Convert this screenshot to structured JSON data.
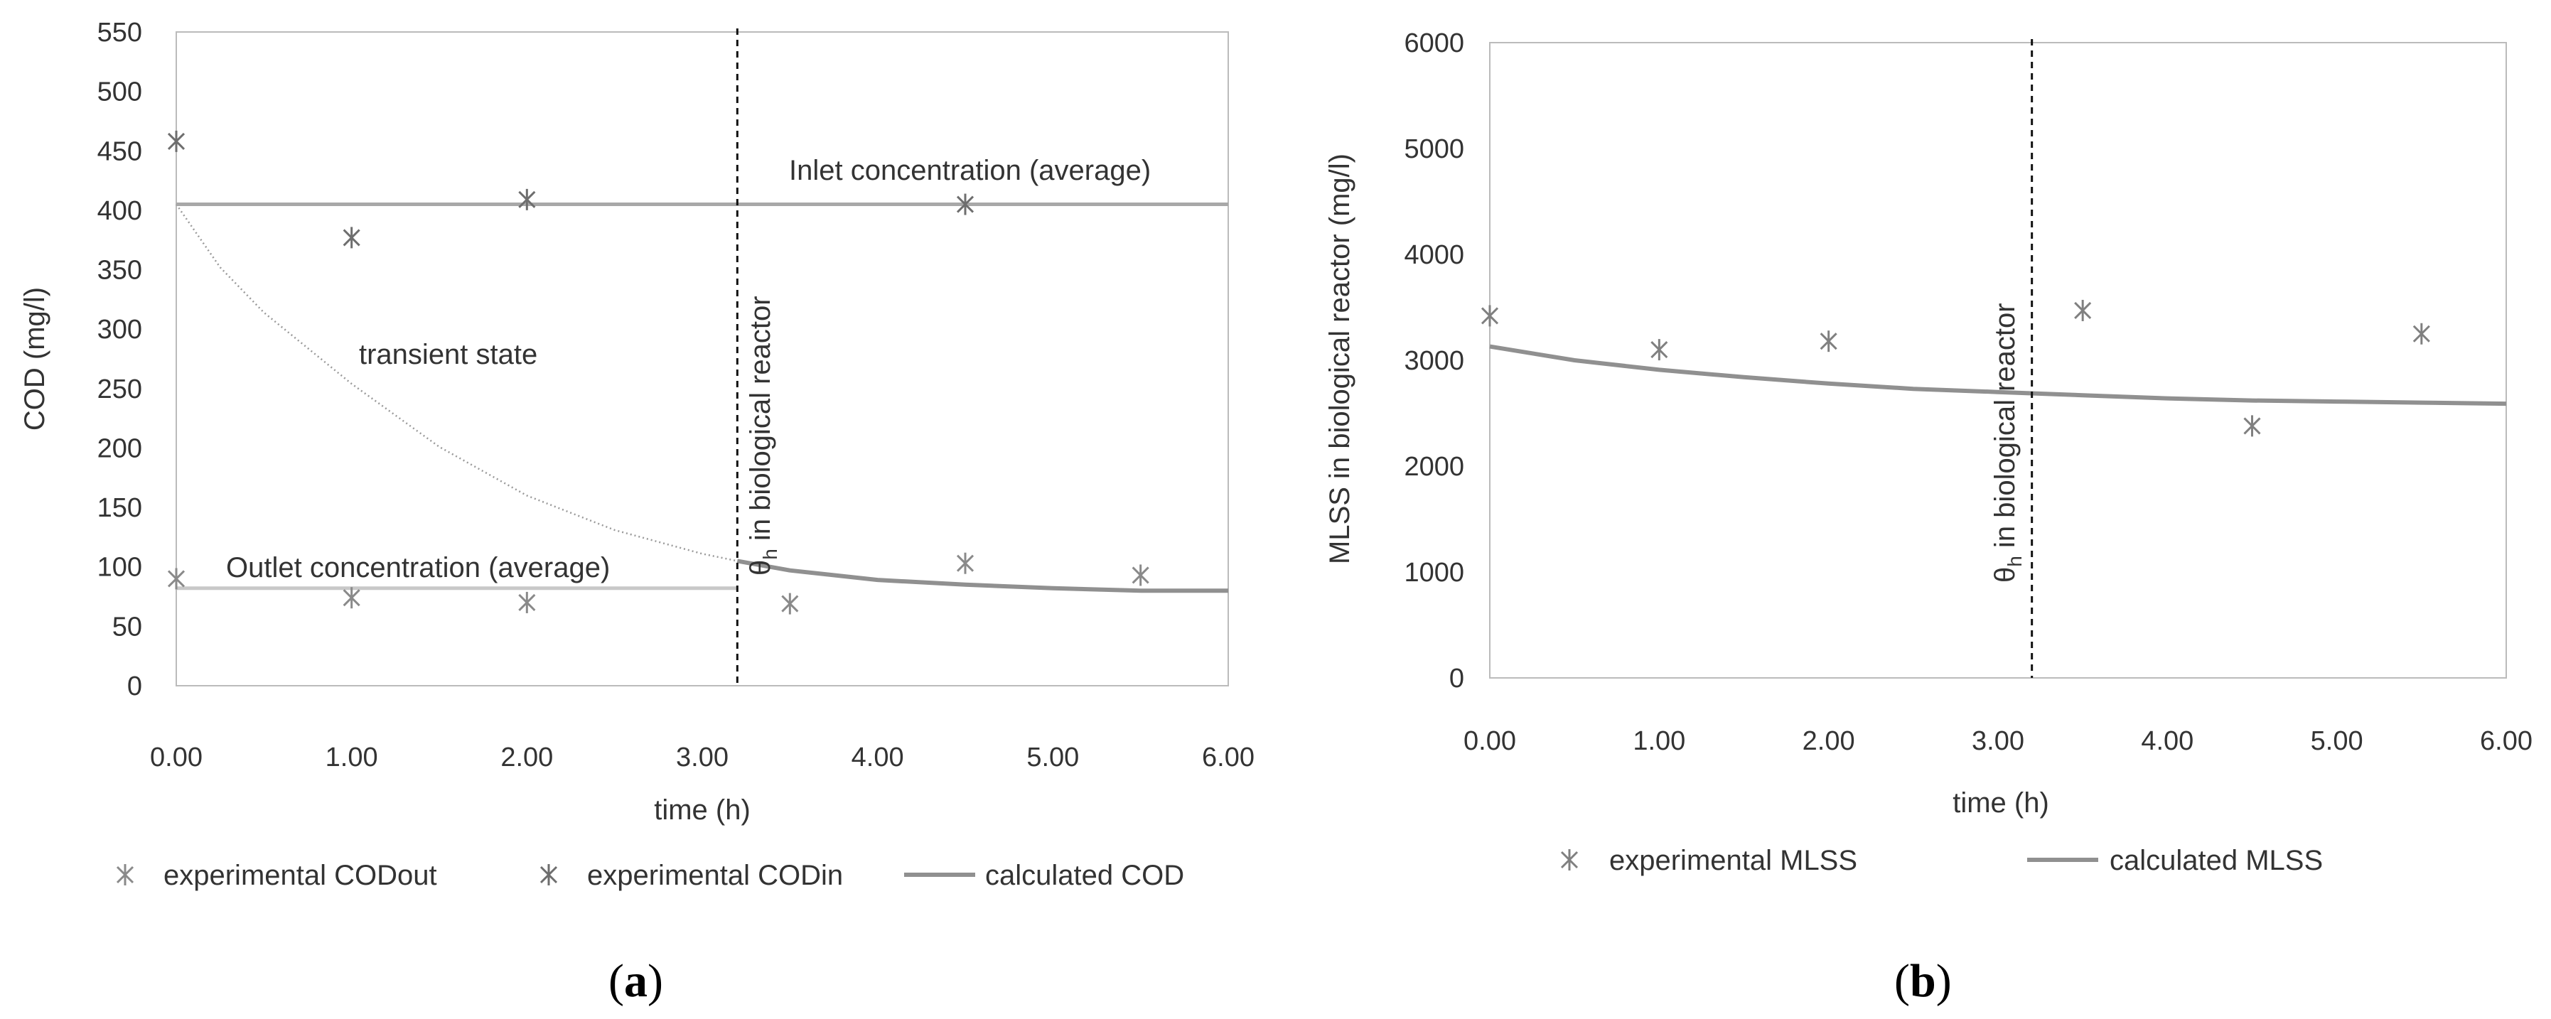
{
  "chart_data": [
    {
      "type": "line",
      "panel_label": "a",
      "xlabel": "time (h)",
      "ylabel": "COD (mg/l)",
      "xlim": [
        0,
        6
      ],
      "ylim": [
        0,
        550
      ],
      "x_ticks": [
        0,
        1,
        2,
        3,
        4,
        5,
        6
      ],
      "x_tick_labels": [
        "0.00",
        "1.00",
        "2.00",
        "3.00",
        "4.00",
        "5.00",
        "6.00"
      ],
      "y_ticks": [
        0,
        50,
        100,
        150,
        200,
        250,
        300,
        350,
        400,
        450,
        500,
        550
      ],
      "y_tick_labels": [
        "0",
        "50",
        "100",
        "150",
        "200",
        "250",
        "300",
        "350",
        "400",
        "450",
        "500",
        "550"
      ],
      "vline": {
        "x": 3.2,
        "label_main": "θ",
        "label_sub": "h",
        "label_rest": " in biological reactor"
      },
      "annotations": {
        "inlet": "Inlet concentration (average)",
        "outlet": "Outlet concentration (average)",
        "transient": "transient state"
      },
      "series": [
        {
          "name": "experimental CODout",
          "kind": "scatter",
          "x": [
            0,
            1,
            2,
            3.5,
            4.5,
            5.5
          ],
          "values": [
            90,
            74,
            70,
            69,
            103,
            93
          ]
        },
        {
          "name": "experimental CODin",
          "kind": "scatter",
          "x": [
            0,
            1,
            2,
            4.5
          ],
          "values": [
            458,
            377,
            409,
            405
          ]
        },
        {
          "name": "calculated COD",
          "kind": "line",
          "x": [
            3.2,
            3.5,
            4.0,
            4.5,
            5.0,
            5.5,
            6.0
          ],
          "values": [
            105,
            97,
            89,
            85,
            82,
            80,
            80
          ]
        },
        {
          "name": "transient state",
          "kind": "dotted-line",
          "x": [
            0,
            0.25,
            0.5,
            1.0,
            1.5,
            2.0,
            2.5,
            3.0,
            3.2
          ],
          "values": [
            405,
            352,
            314,
            254,
            201,
            160,
            131,
            111,
            105
          ]
        },
        {
          "name": "inlet average",
          "kind": "hline",
          "x": [
            0,
            6
          ],
          "values": [
            405,
            405
          ]
        },
        {
          "name": "outlet average",
          "kind": "hline",
          "x": [
            0,
            3.2
          ],
          "values": [
            82,
            82
          ]
        }
      ],
      "legend": [
        "experimental CODout",
        "experimental CODin",
        "calculated COD"
      ]
    },
    {
      "type": "line",
      "panel_label": "b",
      "xlabel": "time (h)",
      "ylabel": "MLSS in biological reactor (mg/l)",
      "xlim": [
        0,
        6
      ],
      "ylim": [
        0,
        6000
      ],
      "x_ticks": [
        0,
        1,
        2,
        3,
        4,
        5,
        6
      ],
      "x_tick_labels": [
        "0.00",
        "1.00",
        "2.00",
        "3.00",
        "4.00",
        "5.00",
        "6.00"
      ],
      "y_ticks": [
        0,
        1000,
        2000,
        3000,
        4000,
        5000,
        6000
      ],
      "y_tick_labels": [
        "0",
        "1000",
        "2000",
        "3000",
        "4000",
        "5000",
        "6000"
      ],
      "vline": {
        "x": 3.2,
        "label_main": "θ",
        "label_sub": "h",
        "label_rest": " in biological reactor"
      },
      "series": [
        {
          "name": "experimental MLSS",
          "kind": "scatter",
          "x": [
            0,
            1,
            2,
            3.5,
            4.5,
            5.5
          ],
          "values": [
            3420,
            3100,
            3180,
            3470,
            2380,
            3250
          ]
        },
        {
          "name": "calculated MLSS",
          "kind": "line",
          "x": [
            0,
            0.5,
            1.0,
            1.5,
            2.0,
            2.5,
            3.0,
            3.5,
            4.0,
            4.5,
            5.0,
            5.5,
            6.0
          ],
          "values": [
            3130,
            3000,
            2910,
            2840,
            2780,
            2730,
            2700,
            2670,
            2640,
            2620,
            2610,
            2600,
            2590
          ]
        }
      ],
      "legend": [
        "experimental MLSS",
        "calculated MLSS"
      ]
    }
  ]
}
